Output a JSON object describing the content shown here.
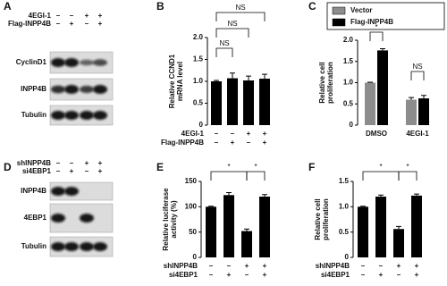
{
  "blots": [
    {
      "panel": "A",
      "conditions": [
        {
          "name": "4EGI-1",
          "signs": [
            "–",
            "–",
            "+",
            "+"
          ]
        },
        {
          "name": "Flag-INPP4B",
          "signs": [
            "–",
            "+",
            "–",
            "+"
          ]
        }
      ],
      "rows": [
        "CyclinD1",
        "INPP4B",
        "Tubulin"
      ]
    },
    {
      "panel": "D",
      "conditions": [
        {
          "name": "shINPP4B",
          "signs": [
            "–",
            "–",
            "+",
            "+"
          ]
        },
        {
          "name": "si4EBP1",
          "signs": [
            "–",
            "+",
            "–",
            "+"
          ]
        }
      ],
      "rows": [
        "INPP4B",
        "4EBP1",
        "Tubulin"
      ]
    }
  ],
  "chart_data": [
    {
      "type": "bar",
      "panel": "B",
      "ylabel": [
        "Relative CCND1",
        "mRNA level"
      ],
      "conditions": [
        {
          "name": "4EGI-1",
          "signs": [
            "–",
            "–",
            "+",
            "+"
          ]
        },
        {
          "name": "Flag-INPP4B",
          "signs": [
            "–",
            "+",
            "–",
            "+"
          ]
        }
      ],
      "series": [
        {
          "color": "#000000",
          "values": [
            1.0,
            1.07,
            1.02,
            1.06
          ],
          "errors": [
            0.02,
            0.12,
            0.1,
            0.1
          ]
        }
      ],
      "ylim": [
        0,
        2
      ],
      "yticks": [
        0,
        0.5,
        {
          "value": 1,
          "label": "1.0"
        },
        1.5,
        {
          "value": 2,
          "label": "2.0"
        }
      ],
      "brackets": [
        {
          "label": "NS",
          "bars": [
            0,
            1
          ]
        },
        {
          "label": "NS",
          "bars": [
            0,
            2
          ]
        },
        {
          "label": "NS",
          "bars": [
            0,
            3
          ]
        }
      ]
    },
    {
      "type": "grouped_bar",
      "panel": "C",
      "ylabel": [
        "Relative cell",
        "proliferation"
      ],
      "categories": [
        "DMSO",
        "4EGI-1"
      ],
      "series": [
        {
          "name": "Vector",
          "color": "#8c8c8c",
          "values": [
            1.0,
            0.6
          ],
          "errors": [
            0.01,
            0.05
          ]
        },
        {
          "name": "Flag-INPP4B",
          "color": "#000000",
          "values": [
            1.76,
            0.63
          ],
          "errors": [
            0.04,
            0.07
          ]
        }
      ],
      "ylim": [
        0,
        2
      ],
      "yticks": [
        0,
        0.5,
        {
          "value": 1,
          "label": "1.0"
        },
        1.5,
        {
          "value": 2,
          "label": "2.0"
        }
      ],
      "brackets": [
        {
          "label": "*",
          "bars": [
            0,
            1
          ]
        },
        {
          "label": "NS",
          "bars": [
            2,
            3
          ]
        }
      ]
    },
    {
      "type": "bar",
      "panel": "E",
      "ylabel": [
        "Relative luciferase",
        "activity (%)"
      ],
      "conditions": [
        {
          "name": "shINPP4B",
          "signs": [
            "–",
            "–",
            "+",
            "+"
          ]
        },
        {
          "name": "si4EBP1",
          "signs": [
            "–",
            "+",
            "–",
            "+"
          ]
        }
      ],
      "series": [
        {
          "color": "#000000",
          "values": [
            100,
            123,
            52,
            120
          ],
          "errors": [
            1,
            5,
            4,
            4
          ]
        }
      ],
      "ylim": [
        0,
        150
      ],
      "yticks": [
        0,
        50,
        100,
        150
      ],
      "brackets": [
        {
          "label": "*",
          "bars": [
            0,
            2
          ]
        },
        {
          "label": "*",
          "bars": [
            2,
            3
          ]
        }
      ]
    },
    {
      "type": "bar",
      "panel": "F",
      "ylabel": [
        "Relative cell",
        "proliferation"
      ],
      "conditions": [
        {
          "name": "shINPP4B",
          "signs": [
            "–",
            "–",
            "+",
            "+"
          ]
        },
        {
          "name": "si4EBP1",
          "signs": [
            "–",
            "+",
            "–",
            "+"
          ]
        }
      ],
      "series": [
        {
          "color": "#000000",
          "values": [
            1.0,
            1.2,
            0.56,
            1.22
          ],
          "errors": [
            0.01,
            0.03,
            0.05,
            0.03
          ]
        }
      ],
      "ylim": [
        0,
        1.5
      ],
      "yticks": [
        0,
        0.5,
        {
          "value": 1,
          "label": "1.0"
        },
        1.5
      ],
      "brackets": [
        {
          "label": "*",
          "bars": [
            0,
            2
          ]
        },
        {
          "label": "*",
          "bars": [
            2,
            3
          ]
        }
      ]
    }
  ]
}
